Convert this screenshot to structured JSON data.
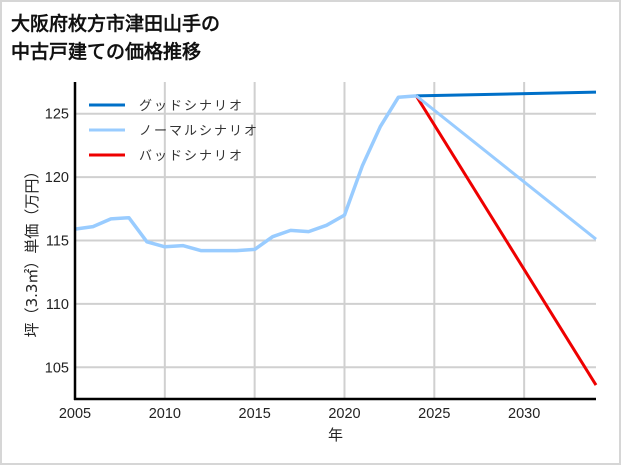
{
  "title": "大阪府枚方市津田山手の\n中古戸建ての価格推移",
  "chart_data": {
    "type": "line",
    "title": "大阪府枚方市津田山手の中古戸建ての価格推移",
    "xlabel": "年",
    "ylabel": "坪（3.3㎡）単価（万円）",
    "xlim": [
      2005,
      2034
    ],
    "ylim": [
      102.5,
      127.5
    ],
    "xticks": [
      2005,
      2010,
      2015,
      2020,
      2025,
      2030
    ],
    "yticks": [
      105,
      110,
      115,
      120,
      125
    ],
    "grid": true,
    "legend_position": "upper left",
    "history": {
      "x": [
        2005,
        2006,
        2007,
        2008,
        2009,
        2010,
        2011,
        2012,
        2013,
        2014,
        2015,
        2016,
        2017,
        2018,
        2019,
        2020,
        2021,
        2022,
        2023,
        2024
      ],
      "values": [
        115.9,
        116.1,
        116.7,
        116.8,
        114.9,
        114.5,
        114.6,
        114.2,
        114.2,
        114.2,
        114.3,
        115.3,
        115.8,
        115.7,
        116.2,
        117.0,
        120.9,
        124.0,
        126.3,
        126.4
      ],
      "color": "#99ccff"
    },
    "series": [
      {
        "name": "グッドシナリオ",
        "color": "#0070c8",
        "x": [
          2024,
          2034
        ],
        "values": [
          126.4,
          126.7
        ]
      },
      {
        "name": "ノーマルシナリオ",
        "color": "#99ccff",
        "x": [
          2024,
          2034
        ],
        "values": [
          126.4,
          115.1
        ]
      },
      {
        "name": "バッドシナリオ",
        "color": "#ee0000",
        "x": [
          2024,
          2034
        ],
        "values": [
          126.4,
          103.6
        ]
      }
    ]
  }
}
